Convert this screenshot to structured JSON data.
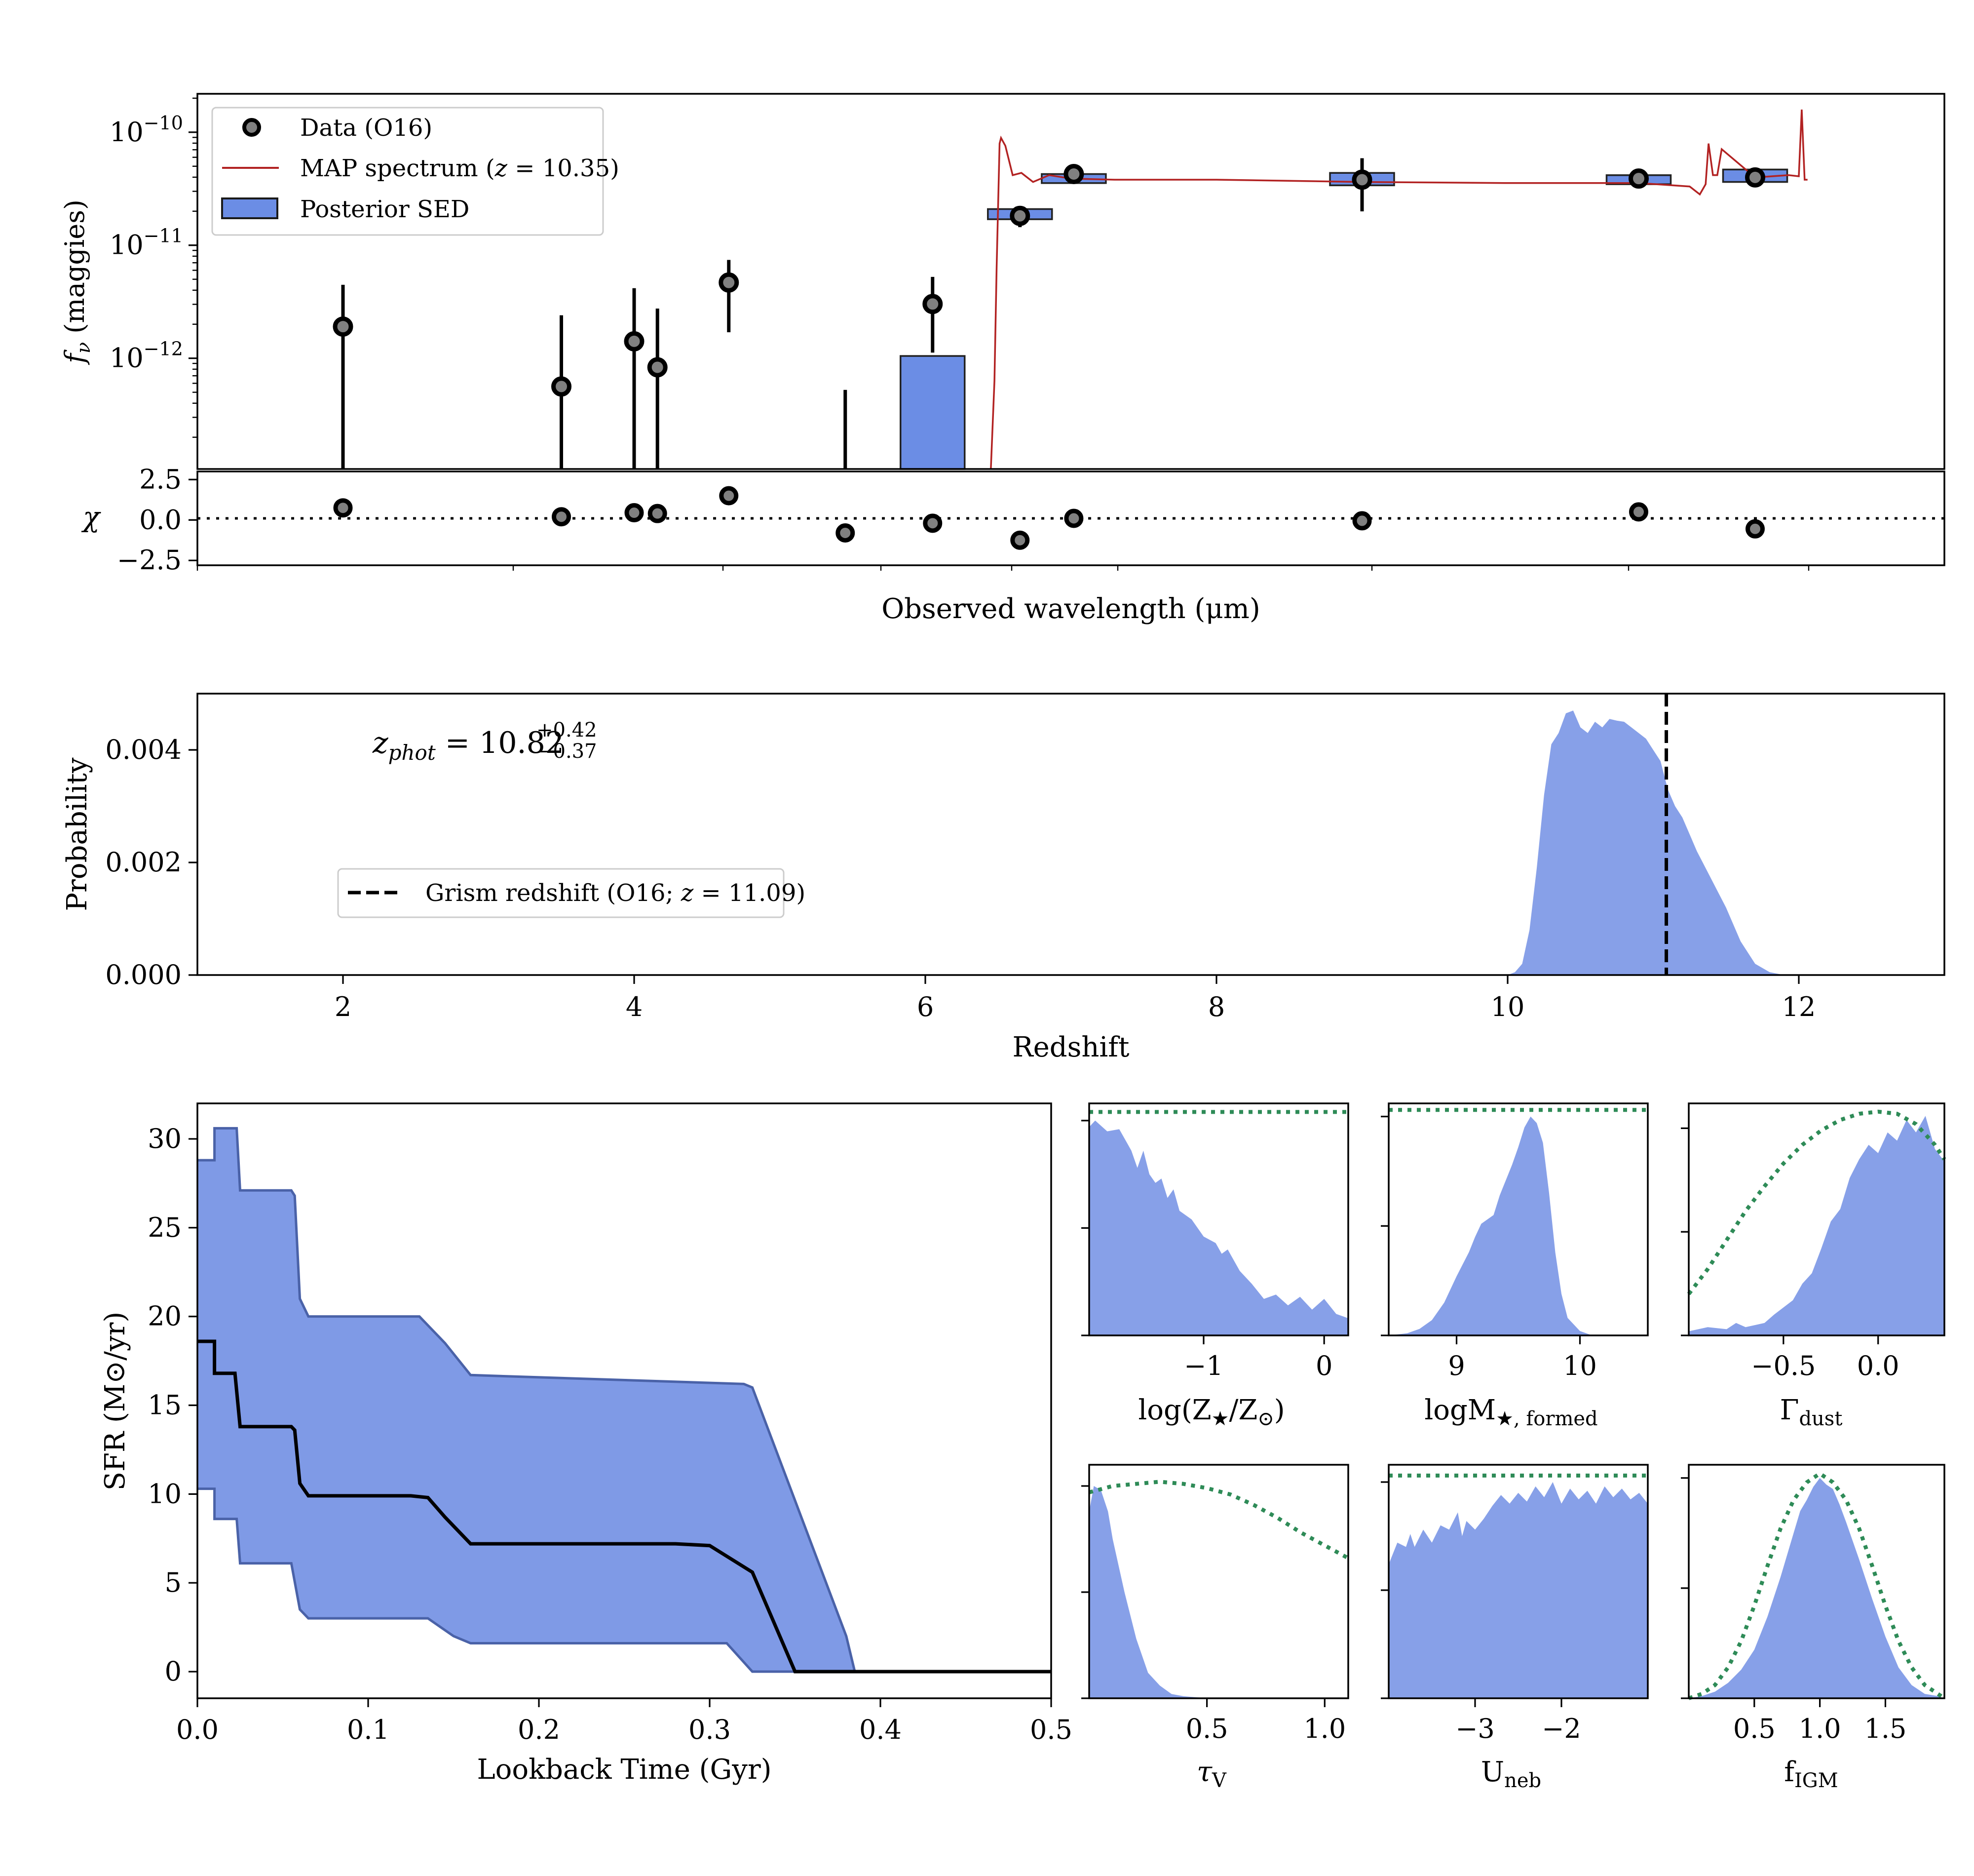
{
  "chart_data": [
    {
      "id": "sed",
      "type": "scatter",
      "title": "",
      "xlabel": "Observed wavelength (μm)",
      "ylabel_italic": "f",
      "ylabel_sub": "ν",
      "ylabel_rest": "(maggies)",
      "yscale": "log",
      "ylim_log10": [
        -12.98,
        -9.66
      ],
      "ytick_base": "10",
      "yticks": [
        {
          "value": -10,
          "label": "−10"
        },
        {
          "value": -11,
          "label": "−11"
        },
        {
          "value": -12,
          "label": "−12"
        }
      ],
      "legend": {
        "position": "upper-left",
        "data_label": "Data (O16)",
        "map_label_pre": "MAP spectrum (",
        "map_label_z": "z",
        "map_label_post": " = 10.35)",
        "sed_label": "Posterior SED"
      },
      "colors": {
        "sed": "#6b8de5",
        "map": "#b22222",
        "marker": "#808080"
      },
      "x_index": [
        1.0,
        2.5,
        3.0,
        3.16,
        3.65,
        4.45,
        5.05,
        5.65,
        6.02,
        8.0,
        9.9,
        10.7
      ],
      "data_log10": [
        -11.72,
        -12.25,
        -11.85,
        -12.08,
        -11.33,
        null,
        -11.52,
        -10.74,
        -10.37,
        -10.42,
        -10.41,
        -10.4
      ],
      "err_lo_log10": [
        -13.2,
        -13.2,
        -13.2,
        -13.2,
        -11.77,
        -13.2,
        -11.95,
        -10.84,
        -10.37,
        -10.7,
        -10.41,
        -10.4
      ],
      "err_hi_log10": [
        -11.35,
        -11.62,
        -11.38,
        -11.56,
        -11.13,
        -12.28,
        -11.28,
        -10.68,
        -10.37,
        -10.23,
        -10.41,
        -10.4
      ],
      "sed_bars": [
        {
          "x": 5.05,
          "lo": -13.2,
          "hi": -11.98
        },
        {
          "x": 5.65,
          "lo": -10.77,
          "hi": -10.68
        },
        {
          "x": 6.02,
          "lo": -10.45,
          "hi": -10.37
        },
        {
          "x": 8.0,
          "lo": -10.47,
          "hi": -10.36
        },
        {
          "x": 9.9,
          "lo": -10.46,
          "hi": -10.38
        },
        {
          "x": 10.7,
          "lo": -10.44,
          "hi": -10.33
        }
      ],
      "map_spectrum": {
        "x": [
          5.45,
          5.475,
          5.49,
          5.51,
          5.52,
          5.55,
          5.6,
          5.66,
          5.74,
          5.85,
          6.0,
          6.3,
          7.0,
          8.0,
          9.0,
          9.9,
          10.25,
          10.32,
          10.36,
          10.38,
          10.41,
          10.44,
          10.47,
          10.7,
          10.93,
          11.0,
          11.02,
          11.04,
          11.06
        ],
        "y": [
          -13.2,
          -12.2,
          -11.2,
          -10.1,
          -10.05,
          -10.12,
          -10.38,
          -10.36,
          -10.44,
          -10.38,
          -10.41,
          -10.42,
          -10.42,
          -10.44,
          -10.45,
          -10.45,
          -10.48,
          -10.55,
          -10.46,
          -10.1,
          -10.38,
          -10.38,
          -10.15,
          -10.4,
          -10.38,
          -10.39,
          -9.8,
          -10.42,
          -10.42
        ]
      },
      "chi_panel": {
        "ylabel": "χ",
        "ylim": [
          -2.8,
          3.0
        ],
        "yticks": [
          {
            "value": 2.5,
            "label": "2.5"
          },
          {
            "value": 0.0,
            "label": "0.0"
          },
          {
            "value": -2.5,
            "label": "−2.5"
          }
        ],
        "values": [
          0.75,
          0.2,
          0.45,
          0.4,
          1.5,
          -0.8,
          -0.2,
          -1.25,
          0.1,
          -0.05,
          0.5,
          -0.55
        ]
      }
    },
    {
      "id": "redshift",
      "type": "area",
      "xlabel": "Redshift",
      "ylabel": "Probability",
      "xlim": [
        1.0,
        13.0
      ],
      "ylim": [
        0.0,
        0.005
      ],
      "xticks": [
        2,
        4,
        6,
        8,
        10,
        12
      ],
      "yticks": [
        {
          "value": 0.0,
          "label": "0.000"
        },
        {
          "value": 0.002,
          "label": "0.002"
        },
        {
          "value": 0.004,
          "label": "0.004"
        }
      ],
      "annotation": {
        "sym": "z",
        "sub": "phot",
        "value": " = 10.82",
        "sup": "+0.42",
        "sub2": "−0.37"
      },
      "legend": {
        "position": "lower-left",
        "label_pre": "Grism redshift (O16; ",
        "label_z": "z",
        "label_post": " = 11.09)"
      },
      "grism_redshift": 11.09,
      "x": [
        10.0,
        10.05,
        10.1,
        10.15,
        10.2,
        10.25,
        10.3,
        10.35,
        10.4,
        10.45,
        10.5,
        10.55,
        10.6,
        10.65,
        10.7,
        10.75,
        10.8,
        10.85,
        10.9,
        10.95,
        11.0,
        11.05,
        11.1,
        11.15,
        11.2,
        11.25,
        11.3,
        11.4,
        11.5,
        11.6,
        11.7,
        11.8,
        11.9
      ],
      "y": [
        0.0,
        5e-05,
        0.0002,
        0.0008,
        0.0019,
        0.0032,
        0.0041,
        0.0043,
        0.00465,
        0.0047,
        0.0044,
        0.0043,
        0.0045,
        0.0044,
        0.00455,
        0.00452,
        0.0045,
        0.0044,
        0.0043,
        0.0042,
        0.004,
        0.0038,
        0.0033,
        0.003,
        0.0028,
        0.0025,
        0.0022,
        0.0017,
        0.0012,
        0.0006,
        0.0002,
        5e-05,
        0.0
      ]
    },
    {
      "id": "sfh",
      "type": "area",
      "xlabel": "Lookback Time (Gyr)",
      "ylabel": "SFR (M⊙/yr)",
      "xlim": [
        0.0,
        0.5
      ],
      "ylim": [
        -1.5,
        32.0
      ],
      "xticks": [
        {
          "value": 0.0,
          "label": "0.0"
        },
        {
          "value": 0.1,
          "label": "0.1"
        },
        {
          "value": 0.2,
          "label": "0.2"
        },
        {
          "value": 0.3,
          "label": "0.3"
        },
        {
          "value": 0.4,
          "label": "0.4"
        },
        {
          "value": 0.5,
          "label": "0.5"
        }
      ],
      "yticks": [
        0,
        5,
        10,
        15,
        20,
        25,
        30
      ],
      "upper": {
        "x": [
          0.0,
          0.01,
          0.01,
          0.023,
          0.025,
          0.055,
          0.057,
          0.06,
          0.065,
          0.13,
          0.145,
          0.16,
          0.32,
          0.325,
          0.38,
          0.385,
          0.5
        ],
        "y": [
          28.8,
          28.8,
          30.6,
          30.6,
          27.1,
          27.1,
          26.8,
          21.0,
          20.0,
          20.0,
          18.5,
          16.7,
          16.2,
          16.0,
          2.0,
          0.0,
          0.0
        ]
      },
      "lower": {
        "x": [
          0.0,
          0.01,
          0.01,
          0.023,
          0.025,
          0.055,
          0.06,
          0.065,
          0.135,
          0.15,
          0.16,
          0.31,
          0.325,
          0.38,
          0.385,
          0.5
        ],
        "y": [
          10.3,
          10.3,
          8.6,
          8.6,
          6.1,
          6.1,
          3.5,
          3.0,
          3.0,
          2.0,
          1.6,
          1.6,
          0.0,
          0.0,
          0.0,
          0.0
        ]
      },
      "median": {
        "x": [
          0.0,
          0.01,
          0.01,
          0.022,
          0.025,
          0.055,
          0.057,
          0.06,
          0.065,
          0.125,
          0.135,
          0.145,
          0.16,
          0.28,
          0.3,
          0.325,
          0.35,
          0.355,
          0.5
        ],
        "y": [
          18.6,
          18.6,
          16.8,
          16.8,
          13.8,
          13.8,
          13.6,
          10.6,
          9.9,
          9.9,
          9.8,
          8.7,
          7.2,
          7.2,
          7.1,
          5.6,
          0.0,
          0.0,
          0.0
        ]
      }
    },
    {
      "id": "logZ",
      "type": "area",
      "xlabel": "log(Z★/Z⊙)",
      "xlim": [
        -1.95,
        0.2
      ],
      "xticks": [
        {
          "value": -1,
          "label": "−1"
        },
        {
          "value": 0,
          "label": "0"
        }
      ],
      "ymax": 1.08,
      "yticks": [
        0,
        0.5,
        1.0
      ],
      "x": [
        -1.95,
        -1.9,
        -1.8,
        -1.7,
        -1.6,
        -1.55,
        -1.5,
        -1.45,
        -1.4,
        -1.35,
        -1.3,
        -1.25,
        -1.2,
        -1.1,
        -1.0,
        -0.9,
        -0.85,
        -0.8,
        -0.7,
        -0.6,
        -0.5,
        -0.4,
        -0.3,
        -0.2,
        -0.1,
        0.0,
        0.1,
        0.2
      ],
      "posterior": [
        0.97,
        1.0,
        0.95,
        0.96,
        0.86,
        0.78,
        0.86,
        0.75,
        0.71,
        0.73,
        0.64,
        0.68,
        0.58,
        0.54,
        0.46,
        0.43,
        0.38,
        0.4,
        0.3,
        0.24,
        0.17,
        0.19,
        0.14,
        0.18,
        0.12,
        0.17,
        0.1,
        0.08
      ],
      "prior_x": [
        -1.95,
        0.2
      ],
      "prior_y": [
        1.04,
        1.04
      ]
    },
    {
      "id": "logM",
      "type": "area",
      "xlabel": "logM★,formed",
      "xlim": [
        8.45,
        10.55
      ],
      "xticks": [
        {
          "value": 9,
          "label": "9"
        },
        {
          "value": 10,
          "label": "10"
        }
      ],
      "ymax": 1.06,
      "yticks": [
        0,
        0.5,
        1.0
      ],
      "x": [
        8.45,
        8.6,
        8.7,
        8.8,
        8.9,
        9.0,
        9.1,
        9.15,
        9.2,
        9.3,
        9.35,
        9.4,
        9.45,
        9.5,
        9.55,
        9.6,
        9.65,
        9.7,
        9.75,
        9.8,
        9.85,
        9.9,
        10.0,
        10.1,
        10.2
      ],
      "posterior": [
        0.0,
        0.01,
        0.03,
        0.07,
        0.15,
        0.27,
        0.38,
        0.45,
        0.51,
        0.55,
        0.64,
        0.71,
        0.78,
        0.86,
        0.95,
        1.0,
        0.97,
        0.88,
        0.65,
        0.38,
        0.19,
        0.08,
        0.02,
        0.0,
        0.0
      ],
      "prior_x": [
        8.45,
        10.55
      ],
      "prior_y": [
        1.03,
        1.03
      ]
    },
    {
      "id": "gamma",
      "type": "area",
      "xlabel": "Γdust",
      "xlim": [
        -1.0,
        0.35
      ],
      "xticks": [
        {
          "value": -0.5,
          "label": "−0.5"
        },
        {
          "value": 0.0,
          "label": "0.0"
        }
      ],
      "ymax": 1.12,
      "yticks": [
        0,
        0.5,
        1.0
      ],
      "x": [
        -1.0,
        -0.9,
        -0.8,
        -0.75,
        -0.7,
        -0.6,
        -0.55,
        -0.45,
        -0.4,
        -0.35,
        -0.3,
        -0.25,
        -0.2,
        -0.15,
        -0.1,
        -0.05,
        0.0,
        0.05,
        0.1,
        0.15,
        0.2,
        0.25,
        0.3,
        0.35
      ],
      "posterior": [
        0.02,
        0.04,
        0.03,
        0.06,
        0.04,
        0.06,
        0.1,
        0.17,
        0.25,
        0.3,
        0.42,
        0.55,
        0.61,
        0.76,
        0.85,
        0.92,
        0.88,
        0.98,
        0.94,
        1.04,
        0.98,
        1.06,
        0.9,
        0.84
      ],
      "prior_x": [
        -1.0,
        -0.9,
        -0.8,
        -0.7,
        -0.6,
        -0.5,
        -0.4,
        -0.3,
        -0.2,
        -0.1,
        0.0,
        0.1,
        0.2,
        0.3,
        0.35
      ],
      "prior_y": [
        0.2,
        0.32,
        0.46,
        0.6,
        0.72,
        0.83,
        0.92,
        0.99,
        1.04,
        1.07,
        1.08,
        1.07,
        1.02,
        0.92,
        0.85
      ]
    },
    {
      "id": "tauV",
      "type": "area",
      "xlabel": "τV",
      "xlim": [
        0.0,
        1.1
      ],
      "xticks": [
        {
          "value": 0.5,
          "label": "0.5"
        },
        {
          "value": 1.0,
          "label": "1.0"
        }
      ],
      "ymax": 1.1,
      "yticks": [
        0,
        0.5,
        1.0
      ],
      "x": [
        0.0,
        0.02,
        0.05,
        0.08,
        0.1,
        0.15,
        0.2,
        0.25,
        0.3,
        0.35,
        0.4,
        0.45,
        0.5,
        1.1
      ],
      "posterior": [
        0.88,
        1.0,
        0.98,
        0.88,
        0.75,
        0.5,
        0.28,
        0.12,
        0.06,
        0.02,
        0.01,
        0.005,
        0.0,
        0.0
      ],
      "prior_x": [
        0.0,
        0.1,
        0.2,
        0.3,
        0.4,
        0.5,
        0.6,
        0.7,
        0.8,
        0.9,
        1.0,
        1.1
      ],
      "prior_y": [
        0.97,
        1.0,
        1.01,
        1.02,
        1.01,
        0.99,
        0.96,
        0.91,
        0.85,
        0.78,
        0.72,
        0.66
      ]
    },
    {
      "id": "Uneb",
      "type": "area",
      "xlabel": "Uneb",
      "xlim": [
        -4.0,
        -1.0
      ],
      "xticks": [
        {
          "value": -3,
          "label": "−3"
        },
        {
          "value": -2,
          "label": "−2"
        }
      ],
      "ymax": 1.08,
      "yticks": [
        0,
        0.5,
        1.0
      ],
      "x": [
        -4.0,
        -3.9,
        -3.8,
        -3.75,
        -3.7,
        -3.6,
        -3.5,
        -3.4,
        -3.3,
        -3.2,
        -3.15,
        -3.1,
        -3.0,
        -2.9,
        -2.8,
        -2.7,
        -2.6,
        -2.5,
        -2.4,
        -2.3,
        -2.2,
        -2.1,
        -2.0,
        -1.9,
        -1.8,
        -1.7,
        -1.6,
        -1.5,
        -1.4,
        -1.3,
        -1.2,
        -1.1,
        -1.0
      ],
      "posterior": [
        0.62,
        0.72,
        0.7,
        0.76,
        0.7,
        0.78,
        0.72,
        0.8,
        0.78,
        0.86,
        0.75,
        0.82,
        0.78,
        0.83,
        0.89,
        0.94,
        0.9,
        0.95,
        0.91,
        0.98,
        0.93,
        1.0,
        0.9,
        0.97,
        0.92,
        0.96,
        0.9,
        0.98,
        0.93,
        0.97,
        0.92,
        0.95,
        0.9
      ],
      "prior_x": [
        -4.0,
        -1.0
      ],
      "prior_y": [
        1.03,
        1.03
      ]
    },
    {
      "id": "fIGM",
      "type": "area",
      "xlabel": "fIGM",
      "xlim": [
        0.0,
        1.95
      ],
      "xticks": [
        {
          "value": 0.5,
          "label": "0.5"
        },
        {
          "value": 1.0,
          "label": "1.0"
        },
        {
          "value": 1.5,
          "label": "1.5"
        }
      ],
      "ymax": 1.06,
      "yticks": [
        0,
        0.5,
        1.0
      ],
      "x": [
        0.0,
        0.1,
        0.2,
        0.3,
        0.4,
        0.5,
        0.6,
        0.7,
        0.8,
        0.85,
        0.9,
        0.95,
        1.0,
        1.05,
        1.1,
        1.15,
        1.2,
        1.3,
        1.4,
        1.5,
        1.6,
        1.7,
        1.8,
        1.9,
        1.95
      ],
      "posterior": [
        0.0,
        0.01,
        0.03,
        0.07,
        0.13,
        0.22,
        0.37,
        0.55,
        0.75,
        0.85,
        0.9,
        0.96,
        1.0,
        0.97,
        0.95,
        0.88,
        0.8,
        0.63,
        0.45,
        0.28,
        0.14,
        0.06,
        0.02,
        0.01,
        0.0
      ],
      "prior_x": [
        0.0,
        0.1,
        0.2,
        0.3,
        0.4,
        0.5,
        0.6,
        0.7,
        0.8,
        0.9,
        1.0,
        1.1,
        1.2,
        1.3,
        1.4,
        1.5,
        1.6,
        1.7,
        1.8,
        1.9,
        1.95
      ],
      "prior_y": [
        0.0,
        0.02,
        0.06,
        0.14,
        0.26,
        0.42,
        0.6,
        0.77,
        0.9,
        0.98,
        1.02,
        0.98,
        0.9,
        0.77,
        0.6,
        0.42,
        0.26,
        0.14,
        0.06,
        0.02,
        0.0
      ]
    }
  ]
}
